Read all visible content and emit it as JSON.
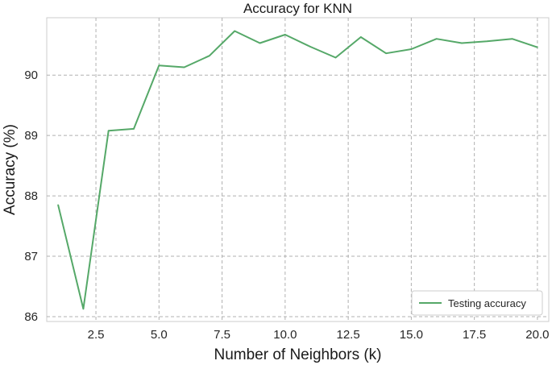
{
  "chart_data": {
    "type": "line",
    "title": "Accuracy for KNN",
    "xlabel": "Number of Neighbors (k)",
    "ylabel": "Accuracy (%)",
    "xlim": [
      0.55,
      20.45
    ],
    "ylim": [
      85.92,
      90.95
    ],
    "xticks": [
      2.5,
      5.0,
      7.5,
      10.0,
      12.5,
      15.0,
      17.5,
      20.0
    ],
    "xtick_labels": [
      "2.5",
      "5.0",
      "7.5",
      "10.0",
      "12.5",
      "15.0",
      "17.5",
      "20.0"
    ],
    "yticks": [
      86,
      87,
      88,
      89,
      90
    ],
    "ytick_labels": [
      "86",
      "87",
      "88",
      "89",
      "90"
    ],
    "grid": true,
    "legend_position": "lower-right",
    "x": [
      1,
      2,
      3,
      4,
      5,
      6,
      7,
      8,
      9,
      10,
      11,
      12,
      13,
      14,
      15,
      16,
      17,
      18,
      19,
      20
    ],
    "series": [
      {
        "name": "Testing accuracy",
        "color": "#55a868",
        "values": [
          87.85,
          86.13,
          89.08,
          89.11,
          90.16,
          90.13,
          90.32,
          90.73,
          90.53,
          90.67,
          90.47,
          90.29,
          90.63,
          90.36,
          90.43,
          90.6,
          90.53,
          90.56,
          90.6,
          90.46
        ]
      }
    ]
  }
}
